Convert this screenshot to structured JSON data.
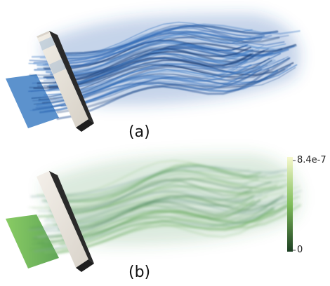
{
  "panels": [
    {
      "label": "(a)"
    },
    {
      "label": "(b)"
    }
  ],
  "colorbar": {
    "max_label": "8.4e-7",
    "min_label": "0",
    "color_high": "#f6f8cc",
    "color_mid": "#7fbd5a",
    "color_low": "#1c3e22"
  },
  "colors": {
    "streamline_blue": "#2b65b3",
    "streamline_green": "#3f8a4c",
    "plate_blue": "#4a86c8",
    "plate_green": "#65b04a",
    "box_face": "#e9e4dc",
    "box_dark": "#232323"
  }
}
